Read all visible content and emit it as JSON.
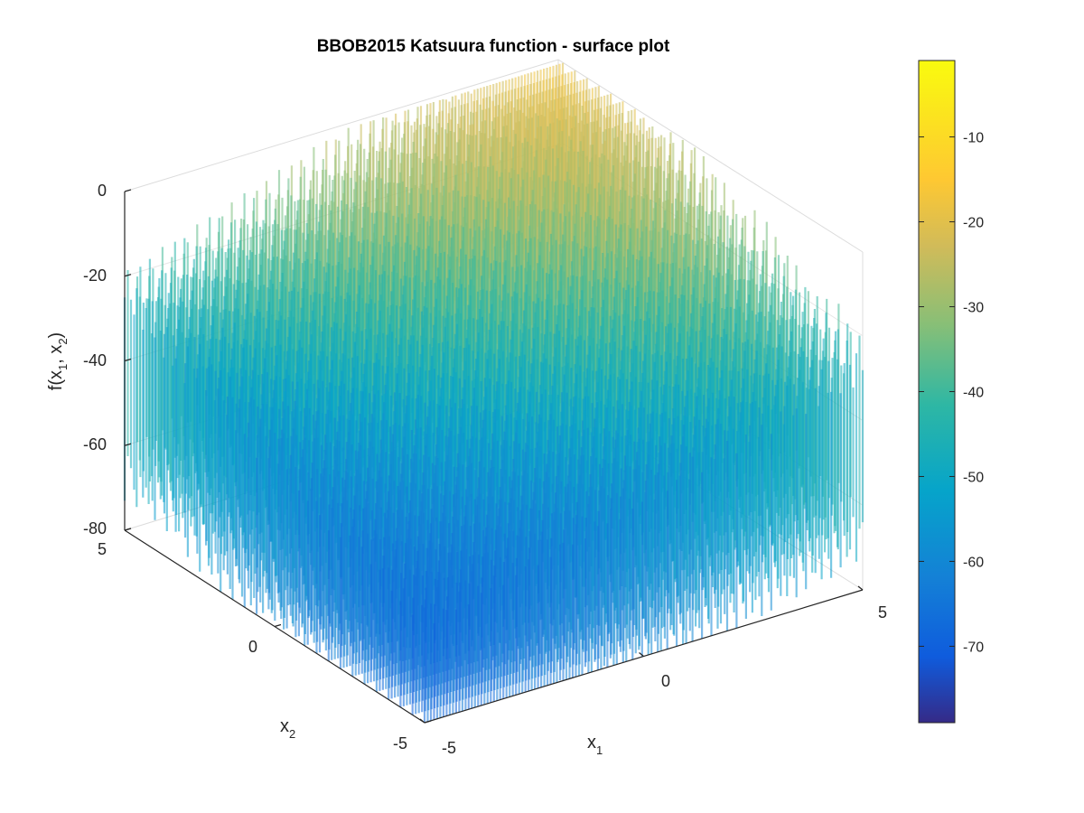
{
  "chart_data": {
    "type": "surface",
    "title": "BBOB2015 Katsuura function - surface plot",
    "xlabel": {
      "base": "x",
      "sub": "1"
    },
    "ylabel": {
      "base": "x",
      "sub": "2"
    },
    "zlabel": {
      "pre": "f(x",
      "sub1": "1",
      "mid": ", x",
      "sub2": "2",
      "post": ")"
    },
    "xlim": [
      -5,
      5
    ],
    "ylim": [
      -5,
      5
    ],
    "zlim": [
      -80,
      0
    ],
    "x_ticks": [
      "-5",
      "0",
      "5"
    ],
    "y_ticks": [
      "-5",
      "0",
      "5"
    ],
    "z_ticks": [
      "0",
      "-20",
      "-40",
      "-60",
      "-80"
    ],
    "colorbar": {
      "colormap": "parula",
      "range": [
        -79,
        -1
      ],
      "ticks": [
        "-10",
        "-20",
        "-30",
        "-40",
        "-50",
        "-60",
        "-70"
      ],
      "tick_values": [
        -10,
        -20,
        -30,
        -40,
        -50,
        -60,
        -70
      ]
    },
    "surface_shape": {
      "description": "highly oscillating; approximate envelope",
      "corner_levels": {
        "x-5_y5": -45,
        "x5_y-5": -45,
        "x-5_y-5": -72,
        "x5_y5": -8
      },
      "center_level": -38
    }
  }
}
